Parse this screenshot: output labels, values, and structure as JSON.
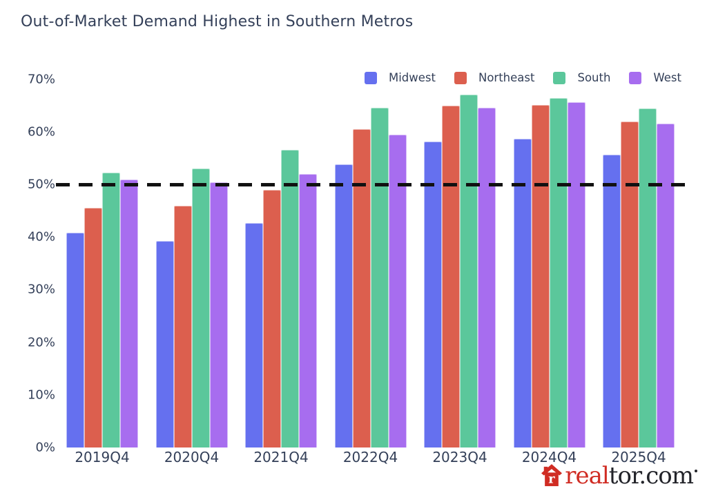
{
  "title": "Out-of-Market Demand Highest in Southern Metros",
  "colors": {
    "text": "#344059",
    "reference_line": "#111111",
    "logo_red": "#d02c23",
    "logo_dark": "#23242a"
  },
  "chart_data": {
    "type": "bar",
    "title": "Out-of-Market Demand Highest in Southern Metros",
    "categories": [
      "2019Q4",
      "2020Q4",
      "2021Q4",
      "2022Q4",
      "2023Q4",
      "2024Q4",
      "2025Q4"
    ],
    "series": [
      {
        "name": "Midwest",
        "color": "#6570ef",
        "values": [
          40.8,
          39.3,
          42.6,
          53.8,
          58.1,
          58.7,
          55.7
        ]
      },
      {
        "name": "Northeast",
        "color": "#dc5f4e",
        "values": [
          45.5,
          45.9,
          48.9,
          60.5,
          64.9,
          65.1,
          61.9
        ]
      },
      {
        "name": "South",
        "color": "#5bc79b",
        "values": [
          52.2,
          53.0,
          56.5,
          64.6,
          67.0,
          66.4,
          64.5
        ]
      },
      {
        "name": "West",
        "color": "#a76def",
        "values": [
          50.9,
          50.4,
          52.0,
          59.4,
          64.6,
          65.6,
          61.5
        ]
      }
    ],
    "xlabel": "",
    "ylabel": "",
    "ylim": [
      0,
      70
    ],
    "yticks": [
      "0%",
      "10%",
      "20%",
      "30%",
      "40%",
      "50%",
      "60%",
      "70%"
    ],
    "grid": false,
    "legend_position": "top-right",
    "reference_line": {
      "value": 50,
      "style": "dashed",
      "color": "#111111"
    }
  },
  "branding": {
    "logo_prefix": "real",
    "logo_suffix": "tor.com"
  }
}
